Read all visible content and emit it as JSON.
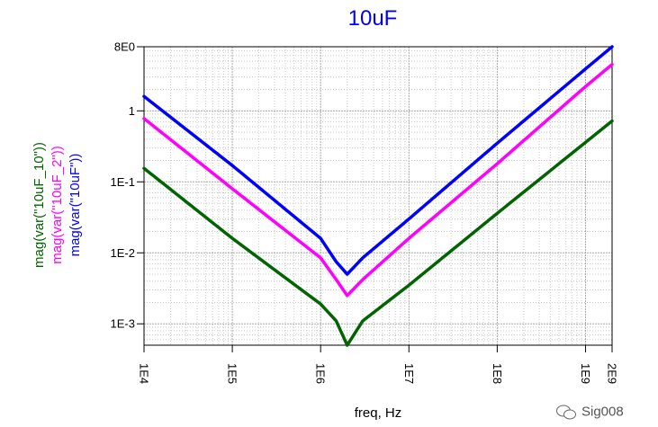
{
  "chart_data": {
    "type": "line",
    "title": "10uF",
    "title_color": "#0000ff",
    "xlabel": "freq, Hz",
    "x_scale": "log",
    "y_scale": "log",
    "xlim": [
      10000,
      2000000000
    ],
    "ylim": [
      0.0005,
      8
    ],
    "grid": true,
    "x_ticks": [
      {
        "value": 10000,
        "label": "1E4"
      },
      {
        "value": 100000,
        "label": "1E5"
      },
      {
        "value": 1000000,
        "label": "1E6"
      },
      {
        "value": 10000000,
        "label": "1E7"
      },
      {
        "value": 100000000,
        "label": "1E8"
      },
      {
        "value": 1000000000,
        "label": "1E9"
      },
      {
        "value": 2000000000,
        "label": "2E9"
      }
    ],
    "y_ticks": [
      {
        "value": 8,
        "label": "8E0"
      },
      {
        "value": 1,
        "label": "1"
      },
      {
        "value": 0.1,
        "label": "1E-1"
      },
      {
        "value": 0.01,
        "label": "1E-2"
      },
      {
        "value": 0.001,
        "label": "1E-3"
      }
    ],
    "series": [
      {
        "name": "mag(var(\"10uF_10\"))",
        "color": "#006400",
        "x": [
          10000,
          100000,
          1000000,
          1500000,
          2000000,
          3000000,
          10000000,
          100000000,
          1000000000,
          2000000000
        ],
        "y": [
          0.155,
          0.016,
          0.0019,
          0.0011,
          0.0005,
          0.0011,
          0.0035,
          0.036,
          0.36,
          0.72
        ]
      },
      {
        "name": "mag(var(\"10uF_2\"))",
        "color": "#ff00ff",
        "x": [
          10000,
          100000,
          1000000,
          1500000,
          2000000,
          3000000,
          10000000,
          100000000,
          1000000000,
          2000000000
        ],
        "y": [
          0.78,
          0.08,
          0.0085,
          0.0042,
          0.0025,
          0.0042,
          0.016,
          0.18,
          2.2,
          4.5
        ]
      },
      {
        "name": "mag(var(\"10uF\"))",
        "color": "#0000ff",
        "x": [
          10000,
          100000,
          1000000,
          1500000,
          2000000,
          3000000,
          10000000,
          100000000,
          1000000000,
          2000000000
        ],
        "y": [
          1.6,
          0.17,
          0.016,
          0.0075,
          0.005,
          0.0085,
          0.03,
          0.35,
          3.9,
          8
        ]
      }
    ]
  },
  "watermark": {
    "icon": "wechat-icon",
    "text": "Sig008"
  }
}
